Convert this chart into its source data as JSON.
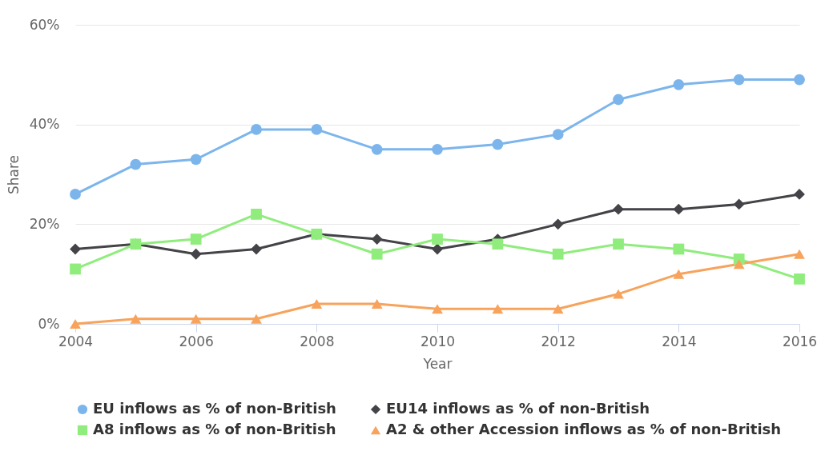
{
  "chart_data": {
    "type": "line",
    "xlabel": "Year",
    "ylabel": "Share",
    "x": [
      2004,
      2005,
      2006,
      2007,
      2008,
      2009,
      2010,
      2011,
      2012,
      2013,
      2014,
      2015,
      2016
    ],
    "series": [
      {
        "name": "EU inflows as % of non-British",
        "color": "#7cb5ec",
        "marker": "circle",
        "values": [
          26,
          32,
          33,
          39,
          39,
          35,
          35,
          36,
          38,
          45,
          48,
          49,
          49
        ]
      },
      {
        "name": "EU14 inflows as % of non-British",
        "color": "#434348",
        "marker": "diamond",
        "values": [
          15,
          16,
          14,
          15,
          18,
          17,
          15,
          17,
          20,
          23,
          23,
          24,
          26
        ]
      },
      {
        "name": "A8 inflows as % of non-British",
        "color": "#90ed7d",
        "marker": "square",
        "values": [
          11,
          16,
          17,
          22,
          18,
          14,
          17,
          16,
          14,
          16,
          15,
          13,
          9
        ]
      },
      {
        "name": "A2 & other Accession inflows as % of non-British",
        "color": "#f7a35c",
        "marker": "triangle",
        "values": [
          0,
          1,
          1,
          1,
          4,
          4,
          3,
          3,
          3,
          6,
          10,
          12,
          14
        ]
      }
    ],
    "xlim": [
      2004,
      2016
    ],
    "xticks": [
      2004,
      2006,
      2008,
      2010,
      2012,
      2014,
      2016
    ],
    "ylim": [
      0,
      60
    ],
    "yticks": [
      {
        "value": 0,
        "label": "0%"
      },
      {
        "value": 20,
        "label": "20%"
      },
      {
        "value": 40,
        "label": "40%"
      },
      {
        "value": 60,
        "label": "60%"
      }
    ],
    "grid": "y",
    "legend": "bottom",
    "line_style": "solid"
  }
}
